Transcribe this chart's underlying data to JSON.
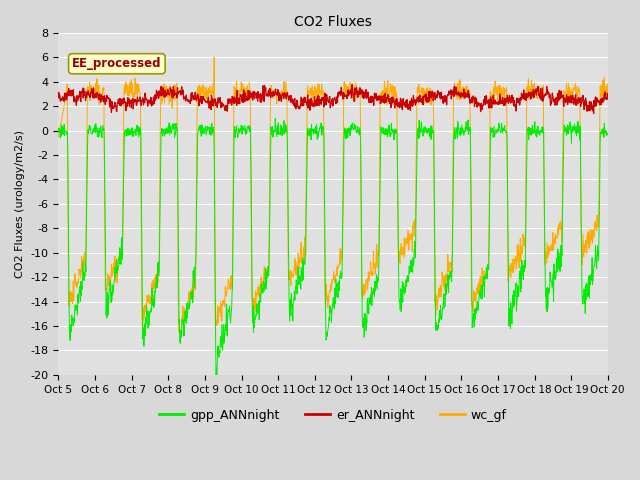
{
  "title": "CO2 Fluxes",
  "ylabel": "CO2 Fluxes (urology/m2/s)",
  "ylim": [
    -20,
    8
  ],
  "yticks": [
    -20,
    -18,
    -16,
    -14,
    -12,
    -10,
    -8,
    -6,
    -4,
    -2,
    0,
    2,
    4,
    6,
    8
  ],
  "xtick_labels": [
    "Oct 5",
    "Oct 6",
    "Oct 7",
    "Oct 8",
    "Oct 9",
    "Oct 10",
    "Oct 11",
    "Oct 12",
    "Oct 13",
    "Oct 14",
    "Oct 15",
    "Oct 16",
    "Oct 17",
    "Oct 18",
    "Oct 19",
    "Oct 20"
  ],
  "legend_labels": [
    "gpp_ANNnight",
    "er_ANNnight",
    "wc_gf"
  ],
  "legend_colors": [
    "#00ee00",
    "#cc0000",
    "#ffaa00"
  ],
  "inset_label": "EE_processed",
  "inset_text_color": "#990000",
  "inset_bg": "#ffffcc",
  "inset_edge": "#999900",
  "gpp_color": "#00ee00",
  "er_color": "#cc0000",
  "wc_color": "#ffaa00",
  "fig_bg": "#d8d8d8",
  "plot_bg": "#e0e0e0",
  "grid_color": "#ffffff",
  "n_days": 15,
  "n_per_day": 96,
  "day_depths_gpp": [
    -16.5,
    -14.5,
    -16.8,
    -17.0,
    -19.5,
    -16.0,
    -15.0,
    -16.5,
    -16.5,
    -14.5,
    -16.5,
    -16.0,
    -15.5,
    -14.0,
    -14.5
  ],
  "day_depths_wc": [
    -14.0,
    -13.0,
    -15.5,
    -16.5,
    -16.0,
    -14.5,
    -12.5,
    -14.0,
    -13.5,
    -10.5,
    -14.5,
    -14.5,
    -12.0,
    -10.5,
    -10.0
  ],
  "wc_spike_day": 4,
  "wc_spike_val": 6.0,
  "er_base": 2.7,
  "gpp_night_base": 0.0,
  "wc_night_base": 3.2
}
